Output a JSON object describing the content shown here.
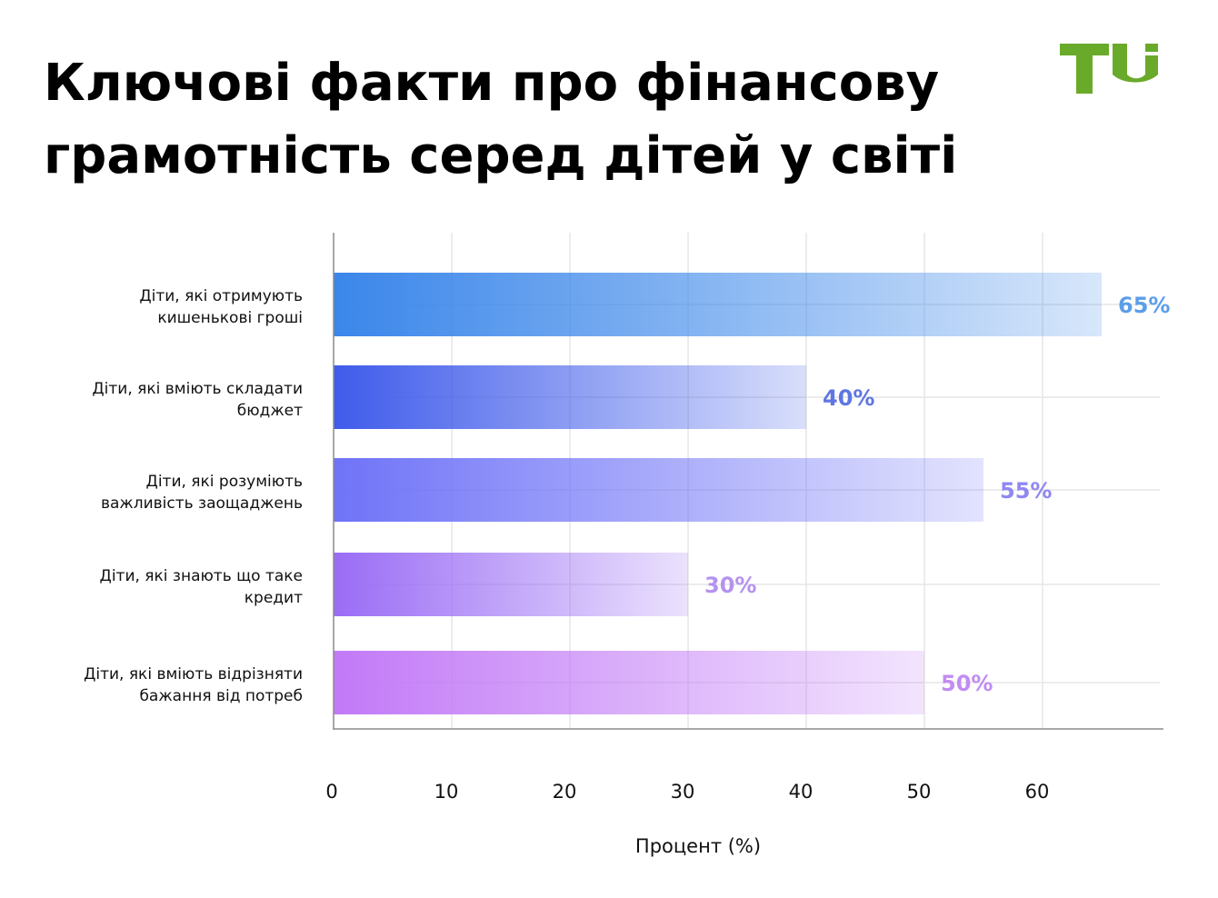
{
  "header": {
    "title_line1": "Ключові факти про фінансову",
    "title_line2": "грамотність серед дітей у світі",
    "logo_text": "TU",
    "logo_color": "#6aaa2a"
  },
  "chart_data": {
    "type": "bar",
    "orientation": "horizontal",
    "title": "Ключові факти про фінансову грамотність серед дітей у світі",
    "xlabel": "Процент (%)",
    "ylabel": "",
    "xlim": [
      0,
      70
    ],
    "xticks": [
      0,
      10,
      20,
      30,
      40,
      50,
      60
    ],
    "grid": true,
    "categories": [
      [
        "Діти, які отримують",
        "кишенькові гроші"
      ],
      [
        "Діти, які вміють складати",
        "бюджет"
      ],
      [
        "Діти, які розуміють",
        "важливість заощаджень"
      ],
      [
        "Діти, які знають що таке",
        "кредит"
      ],
      [
        "Діти, які вміють відрізняти",
        "бажання від потреб"
      ]
    ],
    "values": [
      65,
      40,
      55,
      30,
      50
    ],
    "value_labels": [
      "65%",
      "40%",
      "55%",
      "30%",
      "50%"
    ],
    "colors": [
      "#3a86ea",
      "#3f5bea",
      "#6f73f7",
      "#9a6cf5",
      "#c279f7"
    ],
    "label_colors": [
      "#5b9ee8",
      "#5f76e2",
      "#8f88f2",
      "#b592ee",
      "#c28cf2"
    ]
  }
}
